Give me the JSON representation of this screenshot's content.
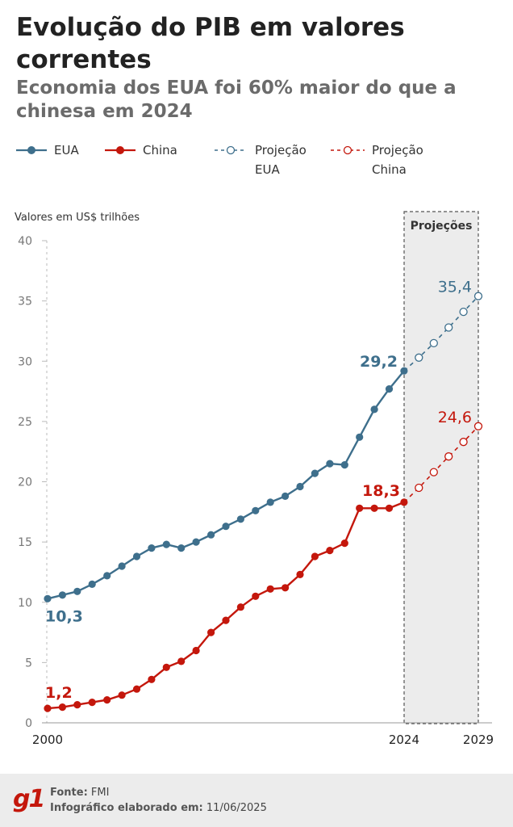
{
  "header": {
    "title": "Evolução do PIB em valores correntes",
    "subtitle": "Economia dos EUA foi 60% maior do que a chinesa em 2024"
  },
  "legend": {
    "eua": "EUA",
    "china": "China",
    "proj_eua_1": "Projeção",
    "proj_eua_2": "EUA",
    "proj_china_1": "Projeção",
    "proj_china_2": "China"
  },
  "footer": {
    "source_label": "Fonte:",
    "source_value": "FMI",
    "date_label": "Infográfico elaborado em:",
    "date_value": "11/06/2025",
    "brand": "g1"
  },
  "chart_data": {
    "type": "line",
    "ylabel": "Valores em US$ trilhões",
    "ylim": [
      0,
      40
    ],
    "yticks": [
      0,
      5,
      10,
      15,
      20,
      25,
      30,
      35,
      40
    ],
    "xlim": [
      2000,
      2029
    ],
    "xtick_labels": [
      "2000",
      "2024",
      "2029"
    ],
    "projection_label": "Projeções",
    "projection_range": [
      2024,
      2029
    ],
    "colors": {
      "eua": "#3e6f8c",
      "china": "#c4170c"
    },
    "series": [
      {
        "name": "EUA",
        "x": [
          2000,
          2001,
          2002,
          2003,
          2004,
          2005,
          2006,
          2007,
          2008,
          2009,
          2010,
          2011,
          2012,
          2013,
          2014,
          2015,
          2016,
          2017,
          2018,
          2019,
          2020,
          2021,
          2022,
          2023,
          2024
        ],
        "values": [
          10.3,
          10.6,
          10.9,
          11.5,
          12.2,
          13.0,
          13.8,
          14.5,
          14.8,
          14.5,
          15.0,
          15.6,
          16.3,
          16.9,
          17.6,
          18.3,
          18.8,
          19.6,
          20.7,
          21.5,
          21.4,
          23.7,
          26.0,
          27.7,
          29.2
        ]
      },
      {
        "name": "China",
        "x": [
          2000,
          2001,
          2002,
          2003,
          2004,
          2005,
          2006,
          2007,
          2008,
          2009,
          2010,
          2011,
          2012,
          2013,
          2014,
          2015,
          2016,
          2017,
          2018,
          2019,
          2020,
          2021,
          2022,
          2023,
          2024
        ],
        "values": [
          1.2,
          1.3,
          1.5,
          1.7,
          1.9,
          2.3,
          2.8,
          3.6,
          4.6,
          5.1,
          6.0,
          7.5,
          8.5,
          9.6,
          10.5,
          11.1,
          11.2,
          12.3,
          13.8,
          14.3,
          14.9,
          17.8,
          17.8,
          17.8,
          18.3
        ]
      },
      {
        "name": "Projeção EUA",
        "x": [
          2024,
          2025,
          2026,
          2027,
          2028,
          2029
        ],
        "values": [
          29.2,
          30.3,
          31.5,
          32.8,
          34.1,
          35.4
        ]
      },
      {
        "name": "Projeção China",
        "x": [
          2024,
          2025,
          2026,
          2027,
          2028,
          2029
        ],
        "values": [
          18.3,
          19.5,
          20.8,
          22.1,
          23.3,
          24.6
        ]
      }
    ],
    "annotations": [
      {
        "series": "EUA",
        "x": 2000,
        "y": 10.3,
        "text": "10,3"
      },
      {
        "series": "China",
        "x": 2000,
        "y": 1.2,
        "text": "1,2"
      },
      {
        "series": "EUA",
        "x": 2024,
        "y": 29.2,
        "text": "29,2"
      },
      {
        "series": "China",
        "x": 2024,
        "y": 18.3,
        "text": "18,3"
      },
      {
        "series": "Projeção EUA",
        "x": 2029,
        "y": 35.4,
        "text": "35,4"
      },
      {
        "series": "Projeção China",
        "x": 2029,
        "y": 24.6,
        "text": "24,6"
      }
    ]
  }
}
